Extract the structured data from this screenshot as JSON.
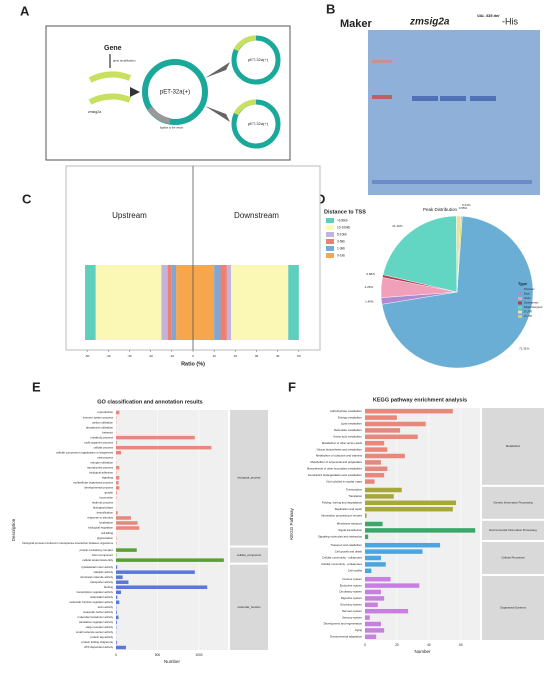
{
  "panel_labels": [
    "A",
    "B",
    "C",
    "D",
    "E",
    "F"
  ],
  "diagram": {
    "gene": "Gene",
    "step1": "gene amplification",
    "insert": "zmsig2a",
    "step2": "ligation to the vector",
    "plasmids": [
      "pET-32a(+)",
      "pET-32a(+)",
      "pET-32a(+)"
    ]
  },
  "gel": {
    "ladder": "Maker",
    "sample": "zmsig2a",
    "superscript": "VAL 435 del",
    "suffix": "-His"
  },
  "chart_data": [
    {
      "type": "diverging_bar",
      "categories": [
        "Upstream",
        "Downstream"
      ],
      "legend_title": "Distance to TSS",
      "xlabel": "Ratio (%)",
      "xlim": [
        -60,
        60
      ],
      "xticks": [
        -50,
        -40,
        -30,
        -20,
        -10,
        0,
        10,
        20,
        30,
        40,
        50
      ],
      "series": [
        {
          "name": "0-1kb",
          "color": "#f6a64c",
          "values": [
            8,
            10
          ]
        },
        {
          "name": "1-3kb",
          "color": "#7fa7d1",
          "values": [
            2,
            3
          ]
        },
        {
          "name": "3-5kb",
          "color": "#ee7f72",
          "values": [
            2,
            3
          ]
        },
        {
          "name": "5-10kb",
          "color": "#c3b3d8",
          "values": [
            3,
            2
          ]
        },
        {
          "name": "10-100kb",
          "color": "#fbf8b6",
          "values": [
            31,
            27
          ]
        },
        {
          "name": ">100kb",
          "color": "#5ecfbd",
          "values": [
            5,
            5
          ]
        }
      ]
    },
    {
      "type": "pie",
      "title": "Peak Distribution",
      "legend_title": "Type",
      "categories": [
        "Promoter",
        "Exon",
        "Intron",
        "Downstream",
        "Distal Intergenic",
        "5' UTR",
        "3' UTR"
      ],
      "values": [
        71.31,
        1.4,
        4.26,
        0.58,
        21.19,
        0.95,
        0.31
      ],
      "value_labels": [
        "71.31%",
        "1.40%",
        "4.26%",
        "0.58%",
        "21.19%",
        "0.95%",
        "0.31%"
      ],
      "colors": [
        "#6aaed6",
        "#b08ad0",
        "#f0a0b8",
        "#b04050",
        "#62d6c2",
        "#e8e0a0",
        "#c8d850"
      ]
    },
    {
      "type": "grouped_hbar",
      "title": "GO classification and annotation results",
      "ylabel": "Description",
      "xlabel": "Number",
      "xlim": [
        0,
        1350
      ],
      "xticks": [
        0,
        500,
        1000
      ],
      "groups": [
        {
          "name": "biological_process",
          "color": "#e8877c",
          "terms": [
            "reproduction",
            "immune system process",
            "carbon utilization",
            "phosphorus utilization",
            "behavior",
            "metabolic process",
            "multi-organism process",
            "cellular process",
            "cellular component organization or biogenesis",
            "viral process",
            "nitrogen utilization",
            "reproductive process",
            "biological adhesion",
            "signaling",
            "multicellular organismal process",
            "developmental process",
            "growth",
            "locomotion",
            "rhythmic process",
            "biological phase",
            "detoxification",
            "response to stimulus",
            "localization",
            "biological regulation",
            "cell killing",
            "pigmentation",
            "biological process involved in interspecies interaction between organisms"
          ],
          "values": [
            40,
            5,
            3,
            2,
            3,
            950,
            10,
            1150,
            60,
            2,
            3,
            40,
            5,
            40,
            30,
            40,
            10,
            5,
            2,
            2,
            20,
            180,
            260,
            280,
            2,
            5,
            5
          ]
        },
        {
          "name": "cellular_component",
          "color": "#5aa032",
          "terms": [
            "protein-containing complex",
            "virion component",
            "cellular anatomical entity"
          ],
          "values": [
            250,
            5,
            1300
          ]
        },
        {
          "name": "molecular_function",
          "color": "#5a78d8",
          "terms": [
            "cytoskeletal motor activity",
            "catalytic activity",
            "structural molecule activity",
            "transporter activity",
            "binding",
            "transcription regulator activity",
            "antioxidant activity",
            "molecular function regulator activity",
            "toxin activity",
            "molecular carrier activity",
            "molecular transducer activity",
            "translation regulator activity",
            "cargo receptor activity",
            "small molecule sensor activity",
            "protein tag activity",
            "protein folding chaperone",
            "ATP-dependent activity"
          ],
          "values": [
            15,
            950,
            80,
            150,
            1100,
            60,
            15,
            40,
            5,
            10,
            30,
            10,
            5,
            3,
            2,
            10,
            120
          ]
        }
      ]
    },
    {
      "type": "grouped_hbar",
      "title": "KEGG pathway enrichment analysis",
      "ylabel": "KEGG Pathway",
      "xlabel": "Number",
      "xlim": [
        0,
        72
      ],
      "xticks": [
        0,
        20,
        40,
        60
      ],
      "groups": [
        {
          "name": "Metabolism",
          "color": "#e8877c",
          "terms": [
            "Carbohydrate metabolism",
            "Energy metabolism",
            "Lipid metabolism",
            "Nucleotide metabolism",
            "Amino acid metabolism",
            "Metabolism of other amino acids",
            "Glycan biosynthesis and metabolism",
            "Metabolism of cofactors and vitamins",
            "Metabolism of terpenoids and polyketides",
            "Biosynthesis of other secondary metabolites",
            "Xenobiotics biodegradation and metabolism",
            "Not included in regular maps"
          ],
          "values": [
            55,
            20,
            38,
            22,
            33,
            12,
            14,
            25,
            10,
            14,
            12,
            6
          ]
        },
        {
          "name": "Genetic Information Processing",
          "color": "#a8a838",
          "terms": [
            "Transcription",
            "Translation",
            "Folding, sorting and degradation",
            "Replication and repair",
            "Information processing in viruses"
          ],
          "values": [
            23,
            18,
            57,
            55,
            1
          ]
        },
        {
          "name": "Environmental Information Processing",
          "color": "#3aa86a",
          "terms": [
            "Membrane transport",
            "Signal transduction",
            "Signaling molecules and interaction"
          ],
          "values": [
            11,
            69,
            2
          ]
        },
        {
          "name": "Cellular Processes",
          "color": "#4aa6e0",
          "terms": [
            "Transport and catabolism",
            "Cell growth and death",
            "Cellular community - eukaryotes",
            "Cellular community - prokaryotes",
            "Cell motility"
          ],
          "values": [
            47,
            36,
            10,
            13,
            4
          ]
        },
        {
          "name": "Organismal Systems",
          "color": "#c880e0",
          "terms": [
            "Immune system",
            "Endocrine system",
            "Circulatory system",
            "Digestive system",
            "Excretory system",
            "Nervous system",
            "Sensory system",
            "Development and regeneration",
            "Aging",
            "Environmental adaptation"
          ],
          "values": [
            16,
            34,
            10,
            12,
            8,
            27,
            3,
            10,
            12,
            7
          ]
        }
      ]
    }
  ]
}
